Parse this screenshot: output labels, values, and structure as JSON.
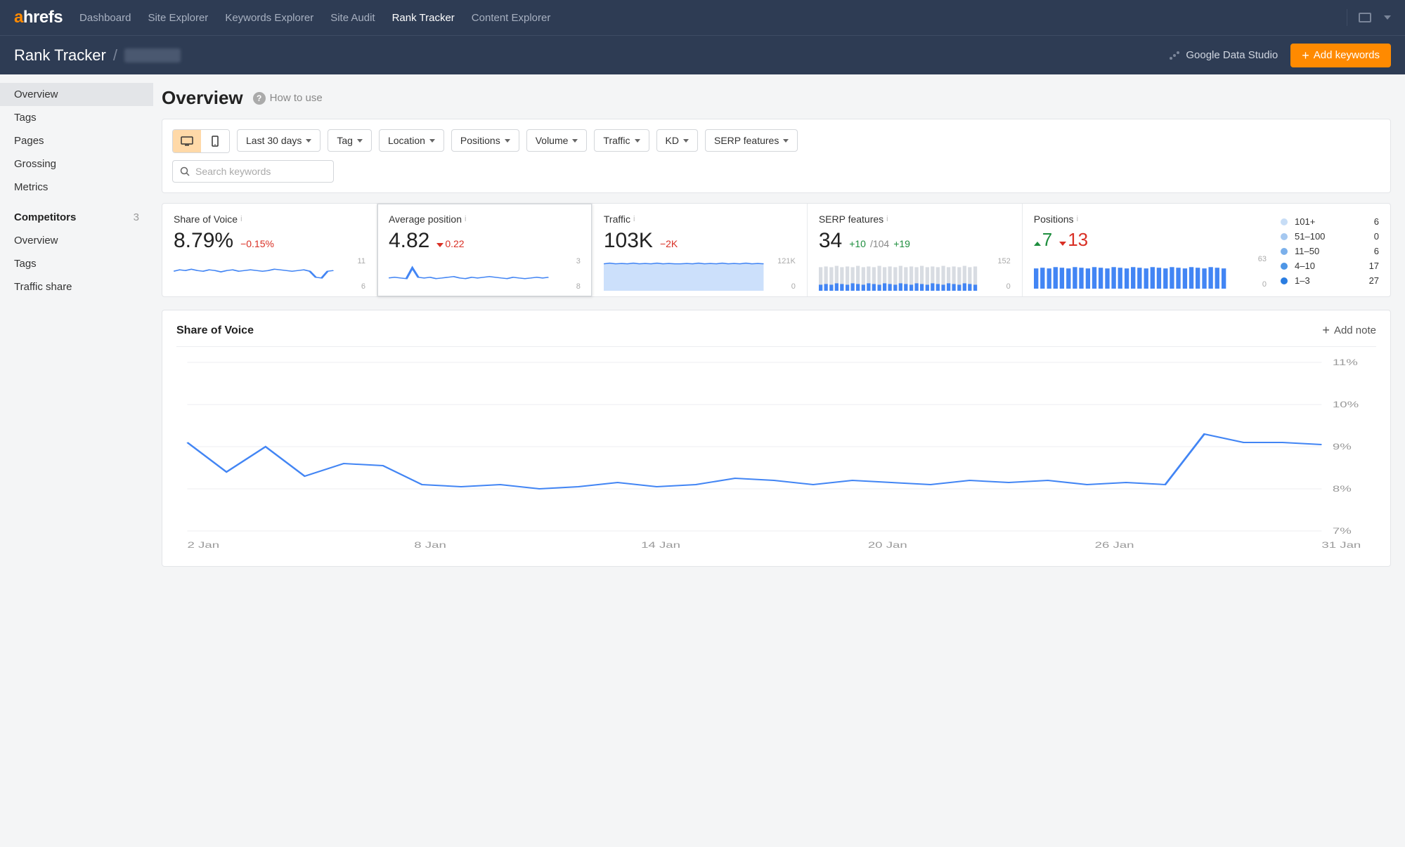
{
  "brand": {
    "prefix": "a",
    "suffix": "hrefs"
  },
  "nav": {
    "items": [
      "Dashboard",
      "Site Explorer",
      "Keywords Explorer",
      "Site Audit",
      "Rank Tracker",
      "Content Explorer"
    ],
    "active_index": 4
  },
  "subheader": {
    "title": "Rank Tracker",
    "gds_label": "Google Data Studio",
    "add_btn": "Add keywords"
  },
  "sidebar": {
    "items": [
      "Overview",
      "Tags",
      "Pages",
      "Grossing",
      "Metrics"
    ],
    "active_index": 0,
    "heading": "Competitors",
    "heading_count": "3",
    "sub_items": [
      "Overview",
      "Tags",
      "Traffic share"
    ]
  },
  "page": {
    "title": "Overview",
    "howto": "How to use"
  },
  "filters": {
    "date": "Last 30 days",
    "items": [
      "Tag",
      "Location",
      "Positions",
      "Volume",
      "Traffic",
      "KD",
      "SERP features"
    ],
    "search_placeholder": "Search keywords"
  },
  "metrics": {
    "sov": {
      "label": "Share of Voice",
      "value": "8.79%",
      "delta": "−0.15%",
      "delta_dir": "down",
      "axis_top": "11",
      "axis_bot": "6",
      "spark": [
        58,
        62,
        60,
        64,
        60,
        58,
        62,
        60,
        56,
        60,
        62,
        58,
        60,
        62,
        60,
        58,
        60,
        64,
        62,
        60,
        58,
        60,
        62,
        58,
        40,
        38,
        58,
        60
      ]
    },
    "avgpos": {
      "label": "Average position",
      "value": "4.82",
      "delta": "0.22",
      "delta_dir": "down",
      "axis_top": "3",
      "axis_bot": "8",
      "spark": [
        38,
        40,
        38,
        36,
        68,
        40,
        38,
        40,
        36,
        38,
        40,
        42,
        38,
        36,
        40,
        38,
        40,
        42,
        40,
        38,
        36,
        40,
        38,
        36,
        38,
        40,
        38,
        40
      ]
    },
    "traffic": {
      "label": "Traffic",
      "value": "103K",
      "delta": "−2K",
      "delta_dir": "down",
      "axis_top": "121K",
      "axis_bot": "0",
      "spark": [
        80,
        82,
        80,
        81,
        80,
        82,
        80,
        81,
        80,
        82,
        80,
        81,
        80,
        80,
        81,
        80,
        82,
        80,
        81,
        80,
        82,
        80,
        81,
        80,
        82,
        80,
        81,
        80
      ]
    },
    "serp": {
      "label": "SERP features",
      "value": "34",
      "delta": "+10",
      "delta_dir": "up",
      "extra1": "/104",
      "extra2": "+19",
      "axis_top": "152",
      "axis_bot": "0",
      "bars_bg": [
        70,
        72,
        70,
        74,
        70,
        72,
        70,
        74,
        70,
        72,
        70,
        74,
        70,
        72,
        70,
        74,
        70,
        72,
        70,
        74,
        70,
        72,
        70,
        74,
        70,
        72,
        70,
        74,
        70,
        72
      ],
      "bars_fg": [
        18,
        20,
        18,
        22,
        20,
        18,
        22,
        20,
        18,
        22,
        20,
        18,
        22,
        20,
        18,
        22,
        20,
        18,
        22,
        20,
        18,
        22,
        20,
        18,
        22,
        20,
        18,
        22,
        20,
        18
      ]
    },
    "positions": {
      "label": "Positions",
      "up": "7",
      "down": "13",
      "axis_top": "63",
      "axis_bot": "0",
      "bars": [
        60,
        62,
        60,
        64,
        62,
        60,
        64,
        62,
        60,
        64,
        62,
        60,
        64,
        62,
        60,
        64,
        62,
        60,
        64,
        62,
        60,
        64,
        62,
        60,
        64,
        62,
        60,
        64,
        62,
        60
      ],
      "legend": [
        {
          "range": "101+",
          "count": "6",
          "color": "#c7ddf6"
        },
        {
          "range": "51–100",
          "count": "0",
          "color": "#a5c8f0"
        },
        {
          "range": "11–50",
          "count": "6",
          "color": "#7bb0eb"
        },
        {
          "range": "4–10",
          "count": "17",
          "color": "#4e96e6"
        },
        {
          "range": "1–3",
          "count": "27",
          "color": "#2a7de1"
        }
      ]
    }
  },
  "chart": {
    "title": "Share of Voice",
    "add_note": "Add note",
    "ylim": [
      7,
      11
    ],
    "ytick_step": 1,
    "xlabels": [
      "2 Jan",
      "8 Jan",
      "14 Jan",
      "20 Jan",
      "26 Jan",
      "31 Jan"
    ],
    "line_color": "#4285f4",
    "grid_color": "#eceef0",
    "series": [
      9.1,
      8.4,
      9.0,
      8.3,
      8.6,
      8.55,
      8.1,
      8.05,
      8.1,
      8.0,
      8.05,
      8.15,
      8.05,
      8.1,
      8.25,
      8.2,
      8.1,
      8.2,
      8.15,
      8.1,
      8.2,
      8.15,
      8.2,
      8.1,
      8.15,
      8.1,
      9.3,
      9.1,
      9.1,
      9.05
    ]
  }
}
